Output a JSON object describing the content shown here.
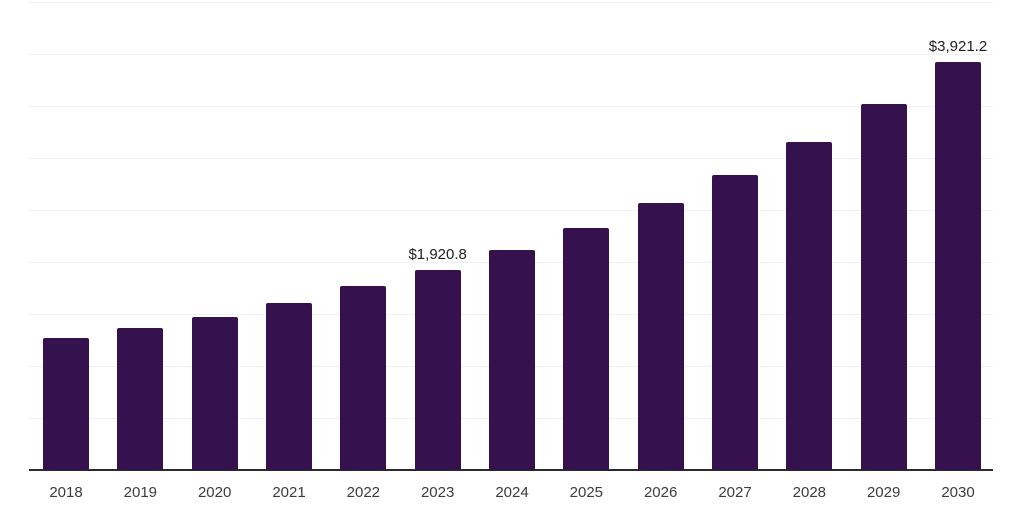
{
  "chart_data": {
    "type": "bar",
    "title": "",
    "xlabel": "",
    "ylabel": "",
    "categories": [
      "2018",
      "2019",
      "2020",
      "2021",
      "2022",
      "2023",
      "2024",
      "2025",
      "2026",
      "2027",
      "2028",
      "2029",
      "2030"
    ],
    "values": [
      1270,
      1365,
      1470,
      1605,
      1770,
      1920.8,
      2115,
      2325,
      2565,
      2835,
      3155,
      3520,
      3921.2
    ],
    "value_labels": [
      "",
      "",
      "",
      "",
      "",
      "$1,920.8",
      "",
      "",
      "",
      "",
      "",
      "",
      "$3,921.2"
    ],
    "ylim": [
      0,
      4500
    ],
    "gridline_step": 500,
    "grid": true,
    "legend": false,
    "y_axis_labels_visible": false,
    "colors": {
      "bar": "#35114E",
      "gridline": "#f0f0f0",
      "axis_line": "#2b2b2b",
      "tick_label": "#3c3c3c",
      "data_label": "#1f1f1f",
      "background": "#ffffff"
    }
  }
}
